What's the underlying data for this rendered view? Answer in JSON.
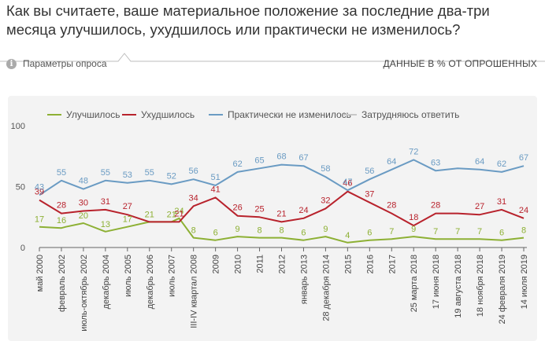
{
  "header": {
    "title": "Как вы считаете, ваше материальное положение за последние два-три месяца улучшилось, ухудшилось или практически не изменилось?",
    "params_label": "Параметры опроса",
    "units_label": "ДАННЫЕ В % ОТ ОПРОШЕННЫХ",
    "info_icon": "i"
  },
  "chart_data": {
    "type": "line",
    "categories": [
      "май 2000",
      "февраль 2002",
      "июль-октябрь 2002",
      "декабрь 2004",
      "июль 2005",
      "декабрь 2006",
      "июль 2007",
      "III-IV квартал 2008",
      "2009",
      "2010",
      "2011",
      "2012",
      "январь 2013",
      "28 декабря 2014",
      "2015",
      "2016",
      "2017",
      "25 марта 2018",
      "17 июня 2018",
      "19 августа 2018",
      "18 ноября 2018",
      "24 февраля 2019",
      "14 июля 2019"
    ],
    "x_positions": [
      0,
      1,
      2,
      3,
      4,
      5,
      6,
      7,
      8,
      9,
      10,
      11,
      12,
      13,
      14,
      15,
      16,
      17,
      18,
      19,
      20,
      21,
      22
    ],
    "series": [
      {
        "name": "Улучшилось",
        "color": "#8db034",
        "x": [
          0,
          1,
          1.2,
          2,
          3,
          4,
          5,
          6,
          6.35,
          7,
          8,
          9,
          10,
          11,
          12,
          13,
          14,
          15,
          16,
          17,
          18,
          19,
          20,
          21,
          22
        ],
        "y": [
          17,
          16,
          17,
          20,
          13,
          17,
          21,
          21,
          24,
          8,
          6,
          9,
          8,
          8,
          6,
          9,
          4,
          6,
          7,
          9,
          7,
          7,
          7,
          6,
          8
        ],
        "labels": [
          17,
          16,
          null,
          20,
          13,
          17,
          21,
          21,
          24,
          8,
          6,
          9,
          8,
          8,
          6,
          9,
          4,
          6,
          7,
          9,
          7,
          7,
          7,
          6,
          8
        ]
      },
      {
        "name": "Ухудшилось",
        "color": "#b8222c",
        "x": [
          0,
          1,
          2,
          3,
          4,
          5,
          6,
          6.35,
          7,
          8,
          9,
          10,
          11,
          12,
          13,
          14,
          15,
          16,
          17,
          18,
          19,
          20,
          21,
          22
        ],
        "y": [
          39,
          28,
          30,
          31,
          27,
          21,
          21,
          21,
          34,
          41,
          26,
          25,
          21,
          24,
          32,
          46,
          37,
          28,
          18,
          28,
          28,
          27,
          31,
          24
        ],
        "labels": [
          39,
          28,
          30,
          31,
          27,
          null,
          null,
          21,
          34,
          41,
          26,
          25,
          21,
          24,
          32,
          46,
          37,
          28,
          18,
          28,
          null,
          27,
          31,
          24
        ]
      },
      {
        "name": "Практически не изменилось",
        "color": "#6a9bc3",
        "x": [
          0,
          1,
          2,
          3,
          4,
          5,
          6,
          7,
          8,
          9,
          10,
          11,
          12,
          13,
          14,
          15,
          16,
          17,
          18,
          19,
          20,
          21,
          22
        ],
        "y": [
          43,
          55,
          48,
          55,
          53,
          55,
          52,
          56,
          51,
          62,
          65,
          68,
          67,
          58,
          47,
          56,
          64,
          72,
          63,
          65,
          64,
          62,
          67
        ],
        "labels": [
          43,
          55,
          48,
          55,
          53,
          55,
          52,
          56,
          51,
          62,
          65,
          68,
          67,
          58,
          47,
          56,
          64,
          72,
          63,
          null,
          64,
          62,
          67
        ]
      },
      {
        "name": "Затрудняюсь ответить",
        "color": "#c8c8c8",
        "disabled": true,
        "x": [],
        "y": [],
        "labels": []
      }
    ],
    "yticks": [
      0,
      50,
      100
    ],
    "ylim": [
      0,
      100
    ],
    "grid": false,
    "legend_position": "top"
  }
}
